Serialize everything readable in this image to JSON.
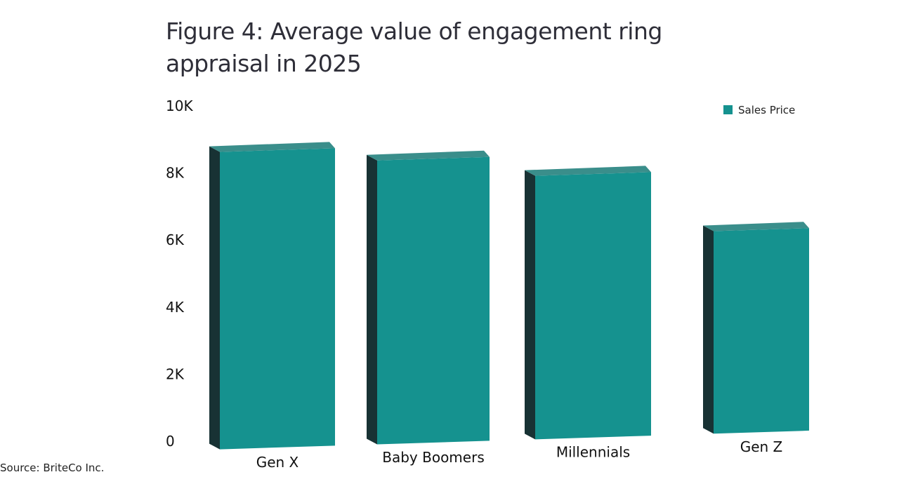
{
  "chart_data": {
    "type": "bar",
    "title": "Figure 4: Average value of engagement ring appraisal in 2025",
    "categories": [
      "Gen X",
      "Baby Boomers",
      "Millennials",
      "Gen Z"
    ],
    "series": [
      {
        "name": "Sales Price",
        "values": [
          8900,
          8500,
          7900,
          6100
        ],
        "color": "#15928f"
      }
    ],
    "yticks": [
      "0",
      "2K",
      "4K",
      "6K",
      "8K",
      "10K"
    ],
    "ylim": [
      0,
      10000
    ],
    "grid": false,
    "legend_position": "top-right",
    "style": "3d"
  },
  "source": "Source: BriteCo Inc."
}
